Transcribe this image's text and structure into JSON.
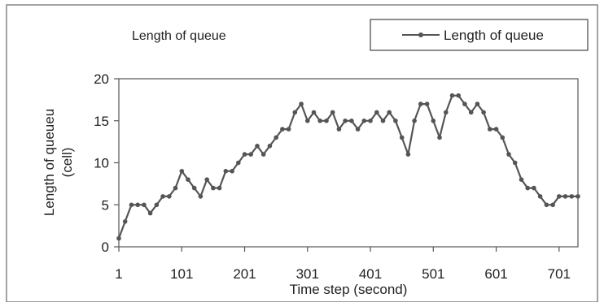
{
  "chart_data": {
    "type": "line",
    "title": "Length of queue",
    "xlabel": "Time step (second)",
    "ylabel": "Length of queueu (cell)",
    "ylabel_lines": [
      "Length of queueu",
      "(cell)"
    ],
    "xlim": [
      1,
      731
    ],
    "ylim": [
      0,
      20
    ],
    "yticks": [
      0,
      5,
      10,
      15,
      20
    ],
    "xticks": [
      1,
      101,
      201,
      301,
      401,
      501,
      601,
      701
    ],
    "grid": false,
    "legend_position": "top-right",
    "series": [
      {
        "name": "Length of queue",
        "color": "#555555",
        "x": [
          1,
          11,
          21,
          31,
          41,
          51,
          61,
          71,
          81,
          91,
          101,
          111,
          121,
          131,
          141,
          151,
          161,
          171,
          181,
          191,
          201,
          211,
          221,
          231,
          241,
          251,
          261,
          271,
          281,
          291,
          301,
          311,
          321,
          331,
          341,
          351,
          361,
          371,
          381,
          391,
          401,
          411,
          421,
          431,
          441,
          451,
          461,
          471,
          481,
          491,
          501,
          511,
          521,
          531,
          541,
          551,
          561,
          571,
          581,
          591,
          601,
          611,
          621,
          631,
          641,
          651,
          661,
          671,
          681,
          691,
          701,
          711,
          721,
          731
        ],
        "values": [
          1,
          3,
          5,
          5,
          5,
          4,
          5,
          6,
          6,
          7,
          9,
          8,
          7,
          6,
          8,
          7,
          7,
          9,
          9,
          10,
          11,
          11,
          12,
          11,
          12,
          13,
          14,
          14,
          16,
          17,
          15,
          16,
          15,
          15,
          16,
          14,
          15,
          15,
          14,
          15,
          15,
          16,
          15,
          16,
          15,
          13,
          11,
          15,
          17,
          17,
          15,
          13,
          16,
          18,
          18,
          17,
          16,
          17,
          16,
          14,
          14,
          13,
          11,
          10,
          8,
          7,
          7,
          6,
          5,
          5,
          6,
          6,
          6,
          6
        ]
      }
    ]
  }
}
